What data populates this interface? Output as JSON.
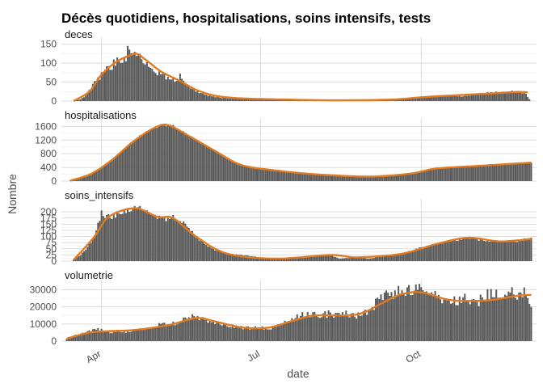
{
  "chart_data": {
    "type": "bar",
    "title": "Décès quotidiens, hospitalisations, soins intensifs, tests",
    "xlabel": "date",
    "ylabel": "Nombre",
    "x_ticks": [
      {
        "label": "Apr",
        "date": "2020-04-01"
      },
      {
        "label": "Jul",
        "date": "2020-07-01"
      },
      {
        "label": "Oct",
        "date": "2020-10-01"
      }
    ],
    "x_range": [
      "2020-03-09",
      "2020-12-06"
    ],
    "bar_color": "#595959",
    "smooth_color": "#E07B22",
    "grid": true,
    "panels": [
      {
        "name": "deces",
        "ylim": [
          0,
          160
        ],
        "yticks": [
          0,
          50,
          100,
          150
        ],
        "values": [
          [
            "2020-03-18",
            2
          ],
          [
            "2020-03-20",
            5
          ],
          [
            "2020-03-22",
            10
          ],
          [
            "2020-03-24",
            20
          ],
          [
            "2020-03-26",
            33
          ],
          [
            "2020-03-28",
            48
          ],
          [
            "2020-03-30",
            58
          ],
          [
            "2020-04-01",
            68
          ],
          [
            "2020-04-03",
            78
          ],
          [
            "2020-04-05",
            86
          ],
          [
            "2020-04-07",
            94
          ],
          [
            "2020-04-09",
            103
          ],
          [
            "2020-04-11",
            108
          ],
          [
            "2020-04-13",
            112
          ],
          [
            "2020-04-15",
            118
          ],
          [
            "2020-04-16",
            140
          ],
          [
            "2020-04-17",
            150
          ],
          [
            "2020-04-19",
            128
          ],
          [
            "2020-04-21",
            118
          ],
          [
            "2020-04-23",
            115
          ],
          [
            "2020-04-25",
            105
          ],
          [
            "2020-04-27",
            98
          ],
          [
            "2020-04-29",
            90
          ],
          [
            "2020-05-01",
            82
          ],
          [
            "2020-05-03",
            75
          ],
          [
            "2020-05-05",
            70
          ],
          [
            "2020-05-07",
            66
          ],
          [
            "2020-05-09",
            62
          ],
          [
            "2020-05-11",
            58
          ],
          [
            "2020-05-13",
            56
          ],
          [
            "2020-05-15",
            60
          ],
          [
            "2020-05-16",
            75
          ],
          [
            "2020-05-18",
            48
          ],
          [
            "2020-05-20",
            40
          ],
          [
            "2020-05-23",
            32
          ],
          [
            "2020-05-26",
            25
          ],
          [
            "2020-05-29",
            19
          ],
          [
            "2020-06-01",
            15
          ],
          [
            "2020-06-05",
            11
          ],
          [
            "2020-06-10",
            8
          ],
          [
            "2020-06-15",
            7
          ],
          [
            "2020-06-20",
            5
          ],
          [
            "2020-07-01",
            4
          ],
          [
            "2020-07-15",
            3
          ],
          [
            "2020-08-01",
            3
          ],
          [
            "2020-08-15",
            2
          ],
          [
            "2020-09-01",
            2
          ],
          [
            "2020-09-15",
            4
          ],
          [
            "2020-09-25",
            8
          ],
          [
            "2020-10-01",
            10
          ],
          [
            "2020-10-10",
            12
          ],
          [
            "2020-10-20",
            15
          ],
          [
            "2020-10-25",
            12
          ],
          [
            "2020-11-01",
            18
          ],
          [
            "2020-11-10",
            22
          ],
          [
            "2020-11-20",
            25
          ],
          [
            "2020-11-25",
            24
          ],
          [
            "2020-11-30",
            20
          ],
          [
            "2020-12-02",
            5
          ]
        ],
        "smooth": [
          [
            "2020-03-16",
            0
          ],
          [
            "2020-03-25",
            25
          ],
          [
            "2020-04-01",
            70
          ],
          [
            "2020-04-10",
            105
          ],
          [
            "2020-04-18",
            122
          ],
          [
            "2020-04-21",
            125
          ],
          [
            "2020-04-26",
            110
          ],
          [
            "2020-05-05",
            78
          ],
          [
            "2020-05-15",
            55
          ],
          [
            "2020-05-25",
            30
          ],
          [
            "2020-06-05",
            14
          ],
          [
            "2020-06-20",
            7
          ],
          [
            "2020-07-15",
            4
          ],
          [
            "2020-08-15",
            2
          ],
          [
            "2020-09-15",
            4
          ],
          [
            "2020-10-01",
            10
          ],
          [
            "2020-10-20",
            15
          ],
          [
            "2020-11-10",
            20
          ],
          [
            "2020-11-25",
            24
          ],
          [
            "2020-12-01",
            23
          ]
        ]
      },
      {
        "name": "hospitalisations",
        "ylim": [
          0,
          1750
        ],
        "yticks": [
          0,
          400,
          800,
          1200,
          1600
        ],
        "values": [
          [
            "2020-03-14",
            10
          ],
          [
            "2020-03-18",
            40
          ],
          [
            "2020-03-22",
            110
          ],
          [
            "2020-03-26",
            210
          ],
          [
            "2020-03-30",
            330
          ],
          [
            "2020-04-03",
            460
          ],
          [
            "2020-04-07",
            620
          ],
          [
            "2020-04-11",
            800
          ],
          [
            "2020-04-15",
            980
          ],
          [
            "2020-04-19",
            1150
          ],
          [
            "2020-04-23",
            1320
          ],
          [
            "2020-04-27",
            1450
          ],
          [
            "2020-05-01",
            1550
          ],
          [
            "2020-05-05",
            1610
          ],
          [
            "2020-05-09",
            1640
          ],
          [
            "2020-05-12",
            1610
          ],
          [
            "2020-05-16",
            1500
          ],
          [
            "2020-05-20",
            1350
          ],
          [
            "2020-05-25",
            1200
          ],
          [
            "2020-05-30",
            1050
          ],
          [
            "2020-06-05",
            880
          ],
          [
            "2020-06-10",
            720
          ],
          [
            "2020-06-15",
            560
          ],
          [
            "2020-06-20",
            470
          ],
          [
            "2020-06-25",
            430
          ],
          [
            "2020-07-01",
            380
          ],
          [
            "2020-07-10",
            310
          ],
          [
            "2020-07-20",
            250
          ],
          [
            "2020-08-01",
            200
          ],
          [
            "2020-08-15",
            160
          ],
          [
            "2020-09-01",
            130
          ],
          [
            "2020-09-15",
            150
          ],
          [
            "2020-09-25",
            220
          ],
          [
            "2020-10-01",
            300
          ],
          [
            "2020-10-10",
            370
          ],
          [
            "2020-10-20",
            410
          ],
          [
            "2020-11-01",
            440
          ],
          [
            "2020-11-15",
            470
          ],
          [
            "2020-11-25",
            500
          ],
          [
            "2020-12-03",
            540
          ]
        ],
        "smooth": [
          [
            "2020-03-14",
            10
          ],
          [
            "2020-03-26",
            210
          ],
          [
            "2020-04-07",
            620
          ],
          [
            "2020-04-19",
            1150
          ],
          [
            "2020-05-01",
            1550
          ],
          [
            "2020-05-09",
            1640
          ],
          [
            "2020-05-20",
            1350
          ],
          [
            "2020-06-05",
            880
          ],
          [
            "2020-06-20",
            470
          ],
          [
            "2020-07-10",
            310
          ],
          [
            "2020-08-01",
            200
          ],
          [
            "2020-09-01",
            130
          ],
          [
            "2020-09-25",
            220
          ],
          [
            "2020-10-10",
            370
          ],
          [
            "2020-11-01",
            440
          ],
          [
            "2020-12-03",
            540
          ]
        ]
      },
      {
        "name": "soins_intensifs",
        "ylim": [
          0,
          240
        ],
        "yticks": [
          0,
          25,
          50,
          75,
          100,
          125,
          150,
          175,
          200
        ],
        "values": [
          [
            "2020-03-16",
            5
          ],
          [
            "2020-03-20",
            25
          ],
          [
            "2020-03-24",
            55
          ],
          [
            "2020-03-28",
            100
          ],
          [
            "2020-03-30",
            150
          ],
          [
            "2020-04-01",
            195
          ],
          [
            "2020-04-03",
            170
          ],
          [
            "2020-04-05",
            185
          ],
          [
            "2020-04-08",
            180
          ],
          [
            "2020-04-11",
            195
          ],
          [
            "2020-04-14",
            205
          ],
          [
            "2020-04-17",
            210
          ],
          [
            "2020-04-20",
            218
          ],
          [
            "2020-04-23",
            215
          ],
          [
            "2020-04-26",
            205
          ],
          [
            "2020-04-29",
            195
          ],
          [
            "2020-05-03",
            180
          ],
          [
            "2020-05-07",
            170
          ],
          [
            "2020-05-12",
            178
          ],
          [
            "2020-05-16",
            165
          ],
          [
            "2020-05-20",
            140
          ],
          [
            "2020-05-25",
            100
          ],
          [
            "2020-05-30",
            70
          ],
          [
            "2020-06-05",
            45
          ],
          [
            "2020-06-12",
            30
          ],
          [
            "2020-06-20",
            25
          ],
          [
            "2020-07-01",
            15
          ],
          [
            "2020-07-10",
            10
          ],
          [
            "2020-07-20",
            15
          ],
          [
            "2020-08-01",
            20
          ],
          [
            "2020-08-10",
            25
          ],
          [
            "2020-08-15",
            10
          ],
          [
            "2020-08-25",
            15
          ],
          [
            "2020-09-01",
            10
          ],
          [
            "2020-09-10",
            20
          ],
          [
            "2020-09-20",
            30
          ],
          [
            "2020-10-01",
            55
          ],
          [
            "2020-10-10",
            70
          ],
          [
            "2020-10-20",
            85
          ],
          [
            "2020-10-28",
            95
          ],
          [
            "2020-11-05",
            85
          ],
          [
            "2020-11-15",
            80
          ],
          [
            "2020-11-25",
            80
          ],
          [
            "2020-12-03",
            95
          ]
        ],
        "smooth": [
          [
            "2020-03-16",
            5
          ],
          [
            "2020-03-28",
            100
          ],
          [
            "2020-04-05",
            180
          ],
          [
            "2020-04-20",
            215
          ],
          [
            "2020-05-03",
            180
          ],
          [
            "2020-05-12",
            175
          ],
          [
            "2020-05-25",
            100
          ],
          [
            "2020-06-12",
            30
          ],
          [
            "2020-07-10",
            10
          ],
          [
            "2020-08-10",
            25
          ],
          [
            "2020-08-25",
            15
          ],
          [
            "2020-09-20",
            30
          ],
          [
            "2020-10-10",
            70
          ],
          [
            "2020-10-28",
            95
          ],
          [
            "2020-11-15",
            80
          ],
          [
            "2020-12-03",
            90
          ]
        ]
      },
      {
        "name": "volumetrie",
        "ylim": [
          0,
          34000
        ],
        "yticks": [
          0,
          10000,
          20000,
          30000
        ],
        "values": [
          [
            "2020-03-12",
            1000
          ],
          [
            "2020-03-16",
            3000
          ],
          [
            "2020-03-20",
            4000
          ],
          [
            "2020-03-25",
            5500
          ],
          [
            "2020-03-30",
            7000
          ],
          [
            "2020-04-05",
            5000
          ],
          [
            "2020-04-10",
            6000
          ],
          [
            "2020-04-15",
            5500
          ],
          [
            "2020-04-20",
            6500
          ],
          [
            "2020-04-25",
            7000
          ],
          [
            "2020-05-01",
            8500
          ],
          [
            "2020-05-05",
            10000
          ],
          [
            "2020-05-10",
            9500
          ],
          [
            "2020-05-15",
            11000
          ],
          [
            "2020-05-20",
            13000
          ],
          [
            "2020-05-25",
            14500
          ],
          [
            "2020-06-01",
            12000
          ],
          [
            "2020-06-05",
            11000
          ],
          [
            "2020-06-10",
            10000
          ],
          [
            "2020-06-15",
            9000
          ],
          [
            "2020-06-20",
            8000
          ],
          [
            "2020-06-25",
            7500
          ],
          [
            "2020-07-01",
            8000
          ],
          [
            "2020-07-05",
            7000
          ],
          [
            "2020-07-10",
            9000
          ],
          [
            "2020-07-15",
            11000
          ],
          [
            "2020-07-20",
            13000
          ],
          [
            "2020-07-25",
            15000
          ],
          [
            "2020-08-01",
            16000
          ],
          [
            "2020-08-05",
            15500
          ],
          [
            "2020-08-10",
            16000
          ],
          [
            "2020-08-15",
            15000
          ],
          [
            "2020-08-20",
            16000
          ],
          [
            "2020-08-25",
            14500
          ],
          [
            "2020-09-01",
            18000
          ],
          [
            "2020-09-05",
            22000
          ],
          [
            "2020-09-10",
            26000
          ],
          [
            "2020-09-15",
            28000
          ],
          [
            "2020-09-20",
            30000
          ],
          [
            "2020-09-25",
            29000
          ],
          [
            "2020-10-01",
            30000
          ],
          [
            "2020-10-05",
            29000
          ],
          [
            "2020-10-10",
            26000
          ],
          [
            "2020-10-15",
            24000
          ],
          [
            "2020-10-20",
            23000
          ],
          [
            "2020-10-25",
            25000
          ],
          [
            "2020-11-01",
            22000
          ],
          [
            "2020-11-05",
            25000
          ],
          [
            "2020-11-10",
            28000
          ],
          [
            "2020-11-15",
            27000
          ],
          [
            "2020-11-20",
            29000
          ],
          [
            "2020-11-25",
            26000
          ],
          [
            "2020-12-01",
            29000
          ],
          [
            "2020-12-03",
            20000
          ]
        ],
        "smooth": [
          [
            "2020-03-12",
            1500
          ],
          [
            "2020-03-25",
            5000
          ],
          [
            "2020-04-05",
            5800
          ],
          [
            "2020-04-20",
            6500
          ],
          [
            "2020-05-10",
            9500
          ],
          [
            "2020-05-25",
            13500
          ],
          [
            "2020-06-05",
            11500
          ],
          [
            "2020-06-20",
            8000
          ],
          [
            "2020-07-05",
            7800
          ],
          [
            "2020-07-20",
            12000
          ],
          [
            "2020-08-01",
            15000
          ],
          [
            "2020-08-25",
            15500
          ],
          [
            "2020-09-10",
            23000
          ],
          [
            "2020-09-20",
            27500
          ],
          [
            "2020-10-01",
            28500
          ],
          [
            "2020-10-15",
            24500
          ],
          [
            "2020-10-25",
            23500
          ],
          [
            "2020-11-10",
            24000
          ],
          [
            "2020-11-25",
            26500
          ],
          [
            "2020-12-03",
            27000
          ]
        ]
      }
    ]
  }
}
